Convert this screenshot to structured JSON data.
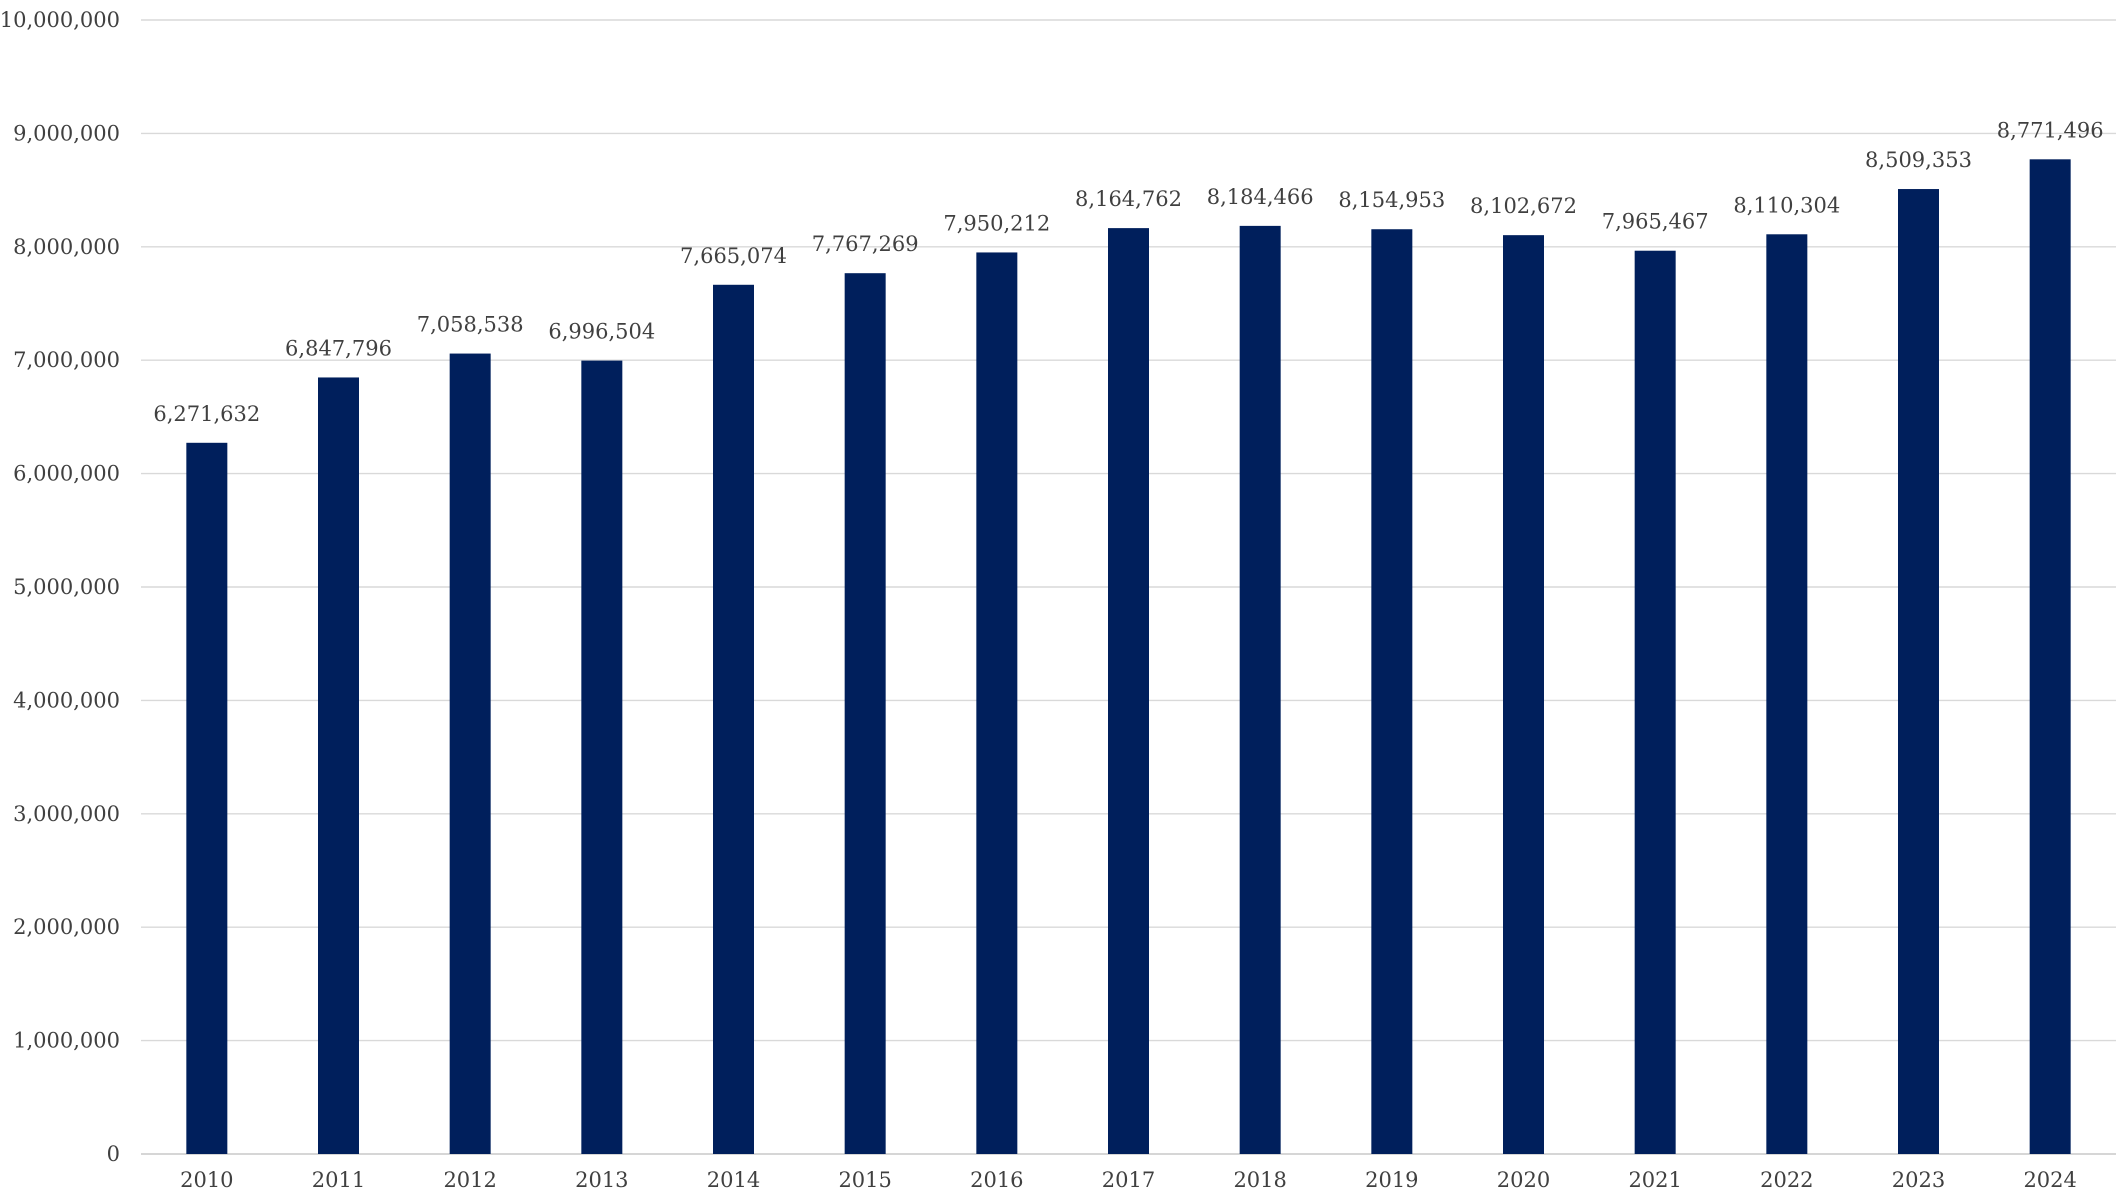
{
  "chart_data": {
    "type": "bar",
    "title": "",
    "xlabel": "",
    "ylabel": "",
    "categories": [
      "2010",
      "2011",
      "2012",
      "2013",
      "2014",
      "2015",
      "2016",
      "2017",
      "2018",
      "2019",
      "2020",
      "2021",
      "2022",
      "2023",
      "2024"
    ],
    "values": [
      6271632,
      6847796,
      7058538,
      6996504,
      7665074,
      7767269,
      7950212,
      8164762,
      8184466,
      8154953,
      8102672,
      7965467,
      8110304,
      8509353,
      8771496
    ],
    "value_labels": [
      "6,271,632",
      "6,847,796",
      "7,058,538",
      "6,996,504",
      "7,665,074",
      "7,767,269",
      "7,950,212",
      "8,164,762",
      "8,184,466",
      "8,154,953",
      "8,102,672",
      "7,965,467",
      "8,110,304",
      "8,509,353",
      "8,771,496"
    ],
    "y_ticks": [
      0,
      1000000,
      2000000,
      3000000,
      4000000,
      5000000,
      6000000,
      7000000,
      8000000,
      9000000,
      10000000
    ],
    "y_tick_labels": [
      "0",
      "1,000,000",
      "2,000,000",
      "3,000,000",
      "4,000,000",
      "5,000,000",
      "6,000,000",
      "7,000,000",
      "8,000,000",
      "9,000,000",
      "10,000,000"
    ],
    "ylim": [
      0,
      10000000
    ],
    "grid": true,
    "legend": "none",
    "bar_color": "#001f5c"
  }
}
